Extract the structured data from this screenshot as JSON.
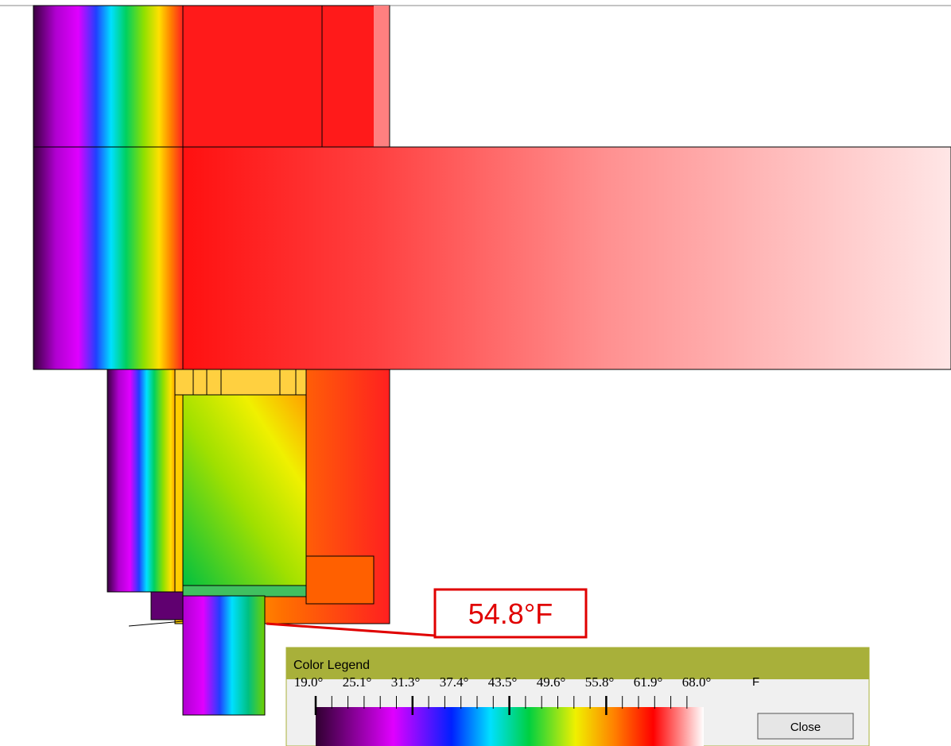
{
  "callout": {
    "label": "54.8°F"
  },
  "legend": {
    "title": "Color Legend",
    "labels": [
      "19.0°",
      "25.1°",
      "31.3°",
      "37.4°",
      "43.5°",
      "49.6°",
      "55.8°",
      "61.9°",
      "68.0°"
    ],
    "unit": "F",
    "button": "Close"
  }
}
